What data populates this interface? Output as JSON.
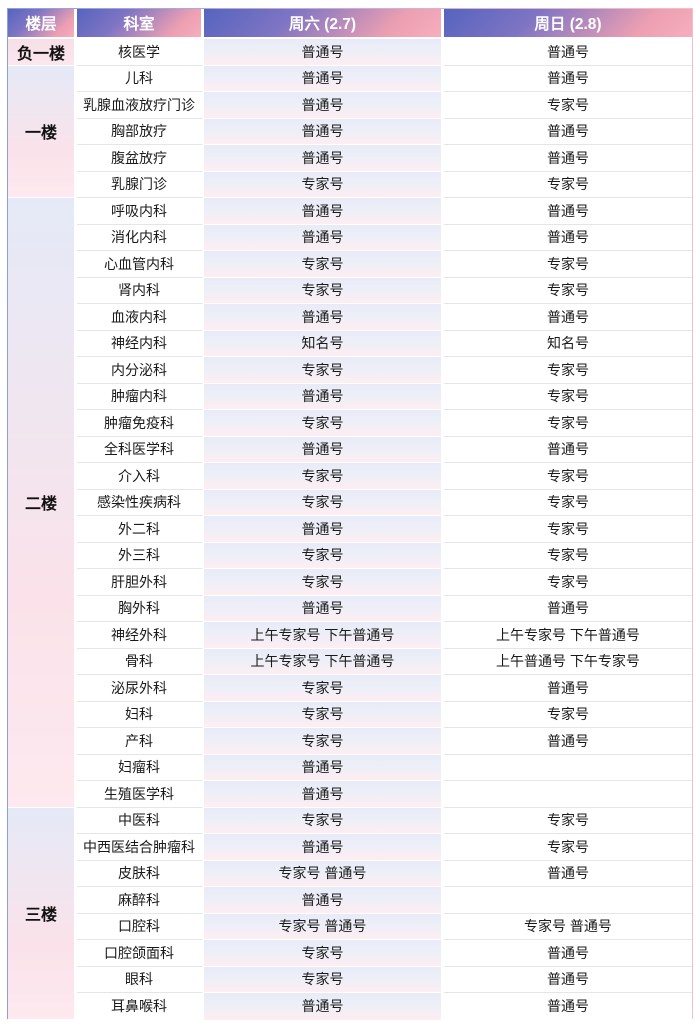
{
  "chart_data": {
    "type": "table",
    "columns": [
      "楼层",
      "科室",
      "周六 (2.7)",
      "周日 (2.8)"
    ],
    "groups": [
      {
        "floor": "负一楼",
        "rows": [
          {
            "dept": "核医学",
            "sat": "普通号",
            "sun": "普通号"
          }
        ]
      },
      {
        "floor": "一楼",
        "rows": [
          {
            "dept": "儿科",
            "sat": "普通号",
            "sun": "普通号"
          },
          {
            "dept": "乳腺血液放疗门诊",
            "sat": "普通号",
            "sun": "专家号"
          },
          {
            "dept": "胸部放疗",
            "sat": "普通号",
            "sun": "普通号"
          },
          {
            "dept": "腹盆放疗",
            "sat": "普通号",
            "sun": "普通号"
          },
          {
            "dept": "乳腺门诊",
            "sat": "专家号",
            "sun": "专家号"
          }
        ]
      },
      {
        "floor": "二楼",
        "rows": [
          {
            "dept": "呼吸内科",
            "sat": "普通号",
            "sun": "普通号"
          },
          {
            "dept": "消化内科",
            "sat": "普通号",
            "sun": "普通号"
          },
          {
            "dept": "心血管内科",
            "sat": "专家号",
            "sun": "专家号"
          },
          {
            "dept": "肾内科",
            "sat": "专家号",
            "sun": "专家号"
          },
          {
            "dept": "血液内科",
            "sat": "普通号",
            "sun": "普通号"
          },
          {
            "dept": "神经内科",
            "sat": "知名号",
            "sun": "知名号"
          },
          {
            "dept": "内分泌科",
            "sat": "专家号",
            "sun": "专家号"
          },
          {
            "dept": "肿瘤内科",
            "sat": "普通号",
            "sun": "专家号"
          },
          {
            "dept": "肿瘤免疫科",
            "sat": "专家号",
            "sun": "专家号"
          },
          {
            "dept": "全科医学科",
            "sat": "普通号",
            "sun": "普通号"
          },
          {
            "dept": "介入科",
            "sat": "专家号",
            "sun": "专家号"
          },
          {
            "dept": "感染性疾病科",
            "sat": "专家号",
            "sun": "专家号"
          },
          {
            "dept": "外二科",
            "sat": "普通号",
            "sun": "专家号"
          },
          {
            "dept": "外三科",
            "sat": "专家号",
            "sun": "专家号"
          },
          {
            "dept": "肝胆外科",
            "sat": "专家号",
            "sun": "专家号"
          },
          {
            "dept": "胸外科",
            "sat": "普通号",
            "sun": "普通号"
          },
          {
            "dept": "神经外科",
            "sat": "上午专家号 下午普通号",
            "sun": "上午专家号 下午普通号"
          },
          {
            "dept": "骨科",
            "sat": "上午专家号 下午普通号",
            "sun": "上午普通号 下午专家号"
          },
          {
            "dept": "泌尿外科",
            "sat": "专家号",
            "sun": "普通号"
          },
          {
            "dept": "妇科",
            "sat": "专家号",
            "sun": "专家号"
          },
          {
            "dept": "产科",
            "sat": "专家号",
            "sun": "普通号"
          },
          {
            "dept": "妇瘤科",
            "sat": "普通号",
            "sun": ""
          },
          {
            "dept": "生殖医学科",
            "sat": "普通号",
            "sun": ""
          }
        ]
      },
      {
        "floor": "三楼",
        "rows": [
          {
            "dept": "中医科",
            "sat": "专家号",
            "sun": "专家号"
          },
          {
            "dept": "中西医结合肿瘤科",
            "sat": "普通号",
            "sun": "专家号"
          },
          {
            "dept": "皮肤科",
            "sat": "专家号 普通号",
            "sun": "普通号"
          },
          {
            "dept": "麻醉科",
            "sat": "普通号",
            "sun": ""
          },
          {
            "dept": "口腔科",
            "sat": "专家号 普通号",
            "sun": "专家号 普通号"
          },
          {
            "dept": "口腔颌面科",
            "sat": "专家号",
            "sun": "普通号"
          },
          {
            "dept": "眼科",
            "sat": "专家号",
            "sun": "普通号"
          },
          {
            "dept": "耳鼻喉科",
            "sat": "普通号",
            "sun": "普通号"
          }
        ]
      }
    ],
    "layout_hints": {
      "grid": true,
      "header_row": true,
      "floor_column_rowspans": [
        1,
        5,
        23,
        8
      ]
    }
  },
  "colors": {
    "header_gradient_start": "#5564be",
    "header_gradient_end": "#f6aebc",
    "floor_cell_gradient_top": "#e5e9f7",
    "floor_cell_gradient_bottom": "#fde9ef",
    "saturday_cell_gradient_top": "#e8ebf7",
    "saturday_cell_gradient_bottom": "#fdeef2",
    "outer_border_left": "#8ba1d8",
    "outer_border_right": "#f5bdc9",
    "row_divider": "#e5e5e9",
    "body_text": "#1a1a1a",
    "header_text": "#ffffff"
  }
}
